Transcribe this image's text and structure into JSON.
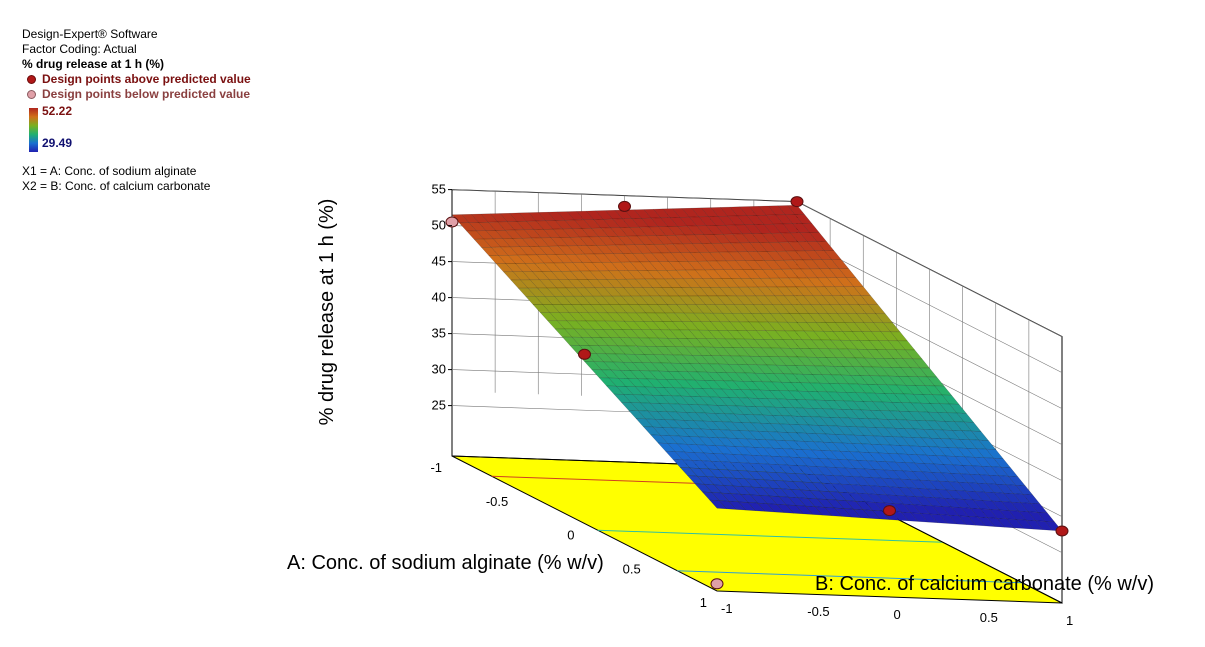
{
  "legend": {
    "software": "Design-Expert® Software",
    "coding": "Factor Coding: Actual",
    "response": "% drug release at 1 h (%)",
    "above_label": "Design points above predicted value",
    "below_label": "Design points below predicted value",
    "color_max": "52.22",
    "color_min": "29.49",
    "x1": "X1 = A: Conc. of sodium alginate",
    "x2": "X2 = B: Conc. of calcium carbonate"
  },
  "colors": {
    "floor": "#ffff00",
    "above": "#b01818",
    "below": "#e0a0a8"
  },
  "chart_data": {
    "type": "surface",
    "zlabel": "% drug release at 1 h (%)",
    "alabel": "A: Conc. of sodium alginate (% w/v)",
    "blabel": "B: Conc. of calcium carbonate (% w/v)",
    "a_ticks": [
      "-1",
      "-0.5",
      "0",
      "0.5",
      "1"
    ],
    "b_ticks": [
      "-1",
      "-0.5",
      "0",
      "0.5",
      "1"
    ],
    "z_ticks": [
      "25",
      "30",
      "35",
      "40",
      "45",
      "50",
      "55"
    ],
    "zlim": [
      18,
      55
    ],
    "arange": [
      -1,
      1
    ],
    "brange": [
      -1,
      1
    ],
    "surface": {
      "corners": {
        "a-1_b-1": 51.5,
        "a-1_b1": 54.5,
        "a1_b-1": 29.5,
        "a1_b1": 28.0
      }
    },
    "design_points": [
      {
        "a": -1,
        "b": -1,
        "z": 50.5,
        "type": "below"
      },
      {
        "a": -1,
        "b": 0,
        "z": 53.5,
        "type": "above"
      },
      {
        "a": -1,
        "b": 1,
        "z": 55.0,
        "type": "above"
      },
      {
        "a": 0,
        "b": -1,
        "z": 41.5,
        "type": "above"
      },
      {
        "a": 1,
        "b": -1,
        "z": 19.0,
        "type": "below"
      },
      {
        "a": 1,
        "b": 0,
        "z": 30.0,
        "type": "above"
      },
      {
        "a": 1,
        "b": 1,
        "z": 28.0,
        "type": "above"
      }
    ]
  }
}
